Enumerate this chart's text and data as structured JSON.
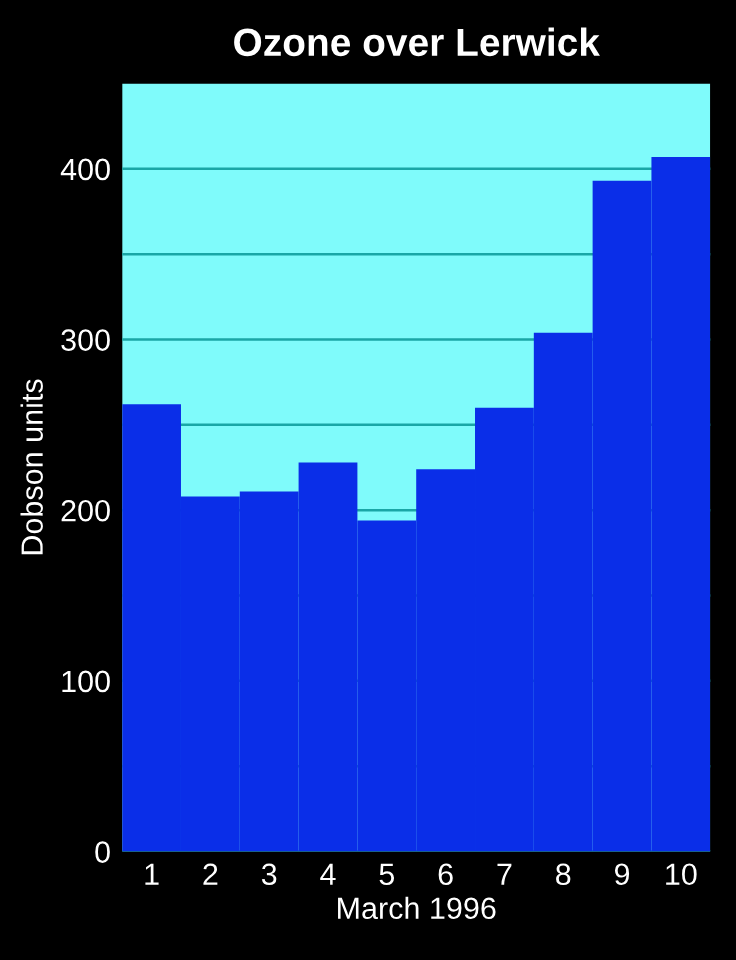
{
  "chart_data": {
    "type": "bar",
    "title": "Ozone over Lerwick",
    "xlabel": "March 1996",
    "ylabel": "Dobson units",
    "categories": [
      "1",
      "2",
      "3",
      "4",
      "5",
      "6",
      "7",
      "8",
      "9",
      "10"
    ],
    "values": [
      262,
      208,
      211,
      228,
      194,
      224,
      260,
      304,
      393,
      407
    ],
    "color": "#0a2ee8",
    "ylim": [
      0,
      450
    ],
    "yticks": [
      0,
      {
        "value": 50,
        "label": null
      },
      100,
      {
        "value": 150,
        "label": null
      },
      200,
      {
        "value": 250,
        "label": null
      },
      300,
      {
        "value": 350,
        "label": null
      },
      400
    ],
    "bands": [
      {
        "axis": "y",
        "from": 0,
        "to": 450,
        "color": "#7ffbfb"
      }
    ],
    "grid": "y"
  }
}
